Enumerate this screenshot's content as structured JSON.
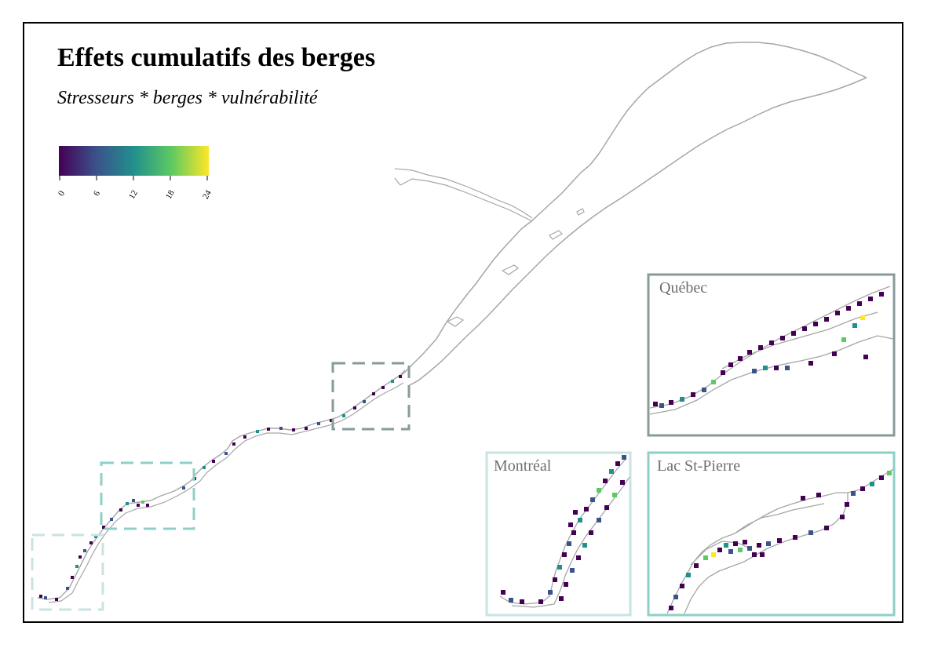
{
  "map": {
    "title": "Effets cumulatifs des berges",
    "subtitle": "Stresseurs * berges * vulnérabilité"
  },
  "legend": {
    "type": "continuous-colorbar",
    "palette": "viridis",
    "colors": [
      "#440154",
      "#3b528b",
      "#21908d",
      "#5dc963",
      "#fde725"
    ],
    "min": 0,
    "max": 24,
    "ticks": [
      "0",
      "6",
      "12",
      "18",
      "24"
    ]
  },
  "insets": [
    {
      "name": "Québec",
      "color": "#879b9a"
    },
    {
      "name": "Montréal",
      "color": "#c9e3e3"
    },
    {
      "name": "Lac St-Pierre",
      "color": "#8ed0c7"
    }
  ],
  "styles": {
    "shoreline_color": "#a6a6a6",
    "frame_color": "#000000"
  }
}
